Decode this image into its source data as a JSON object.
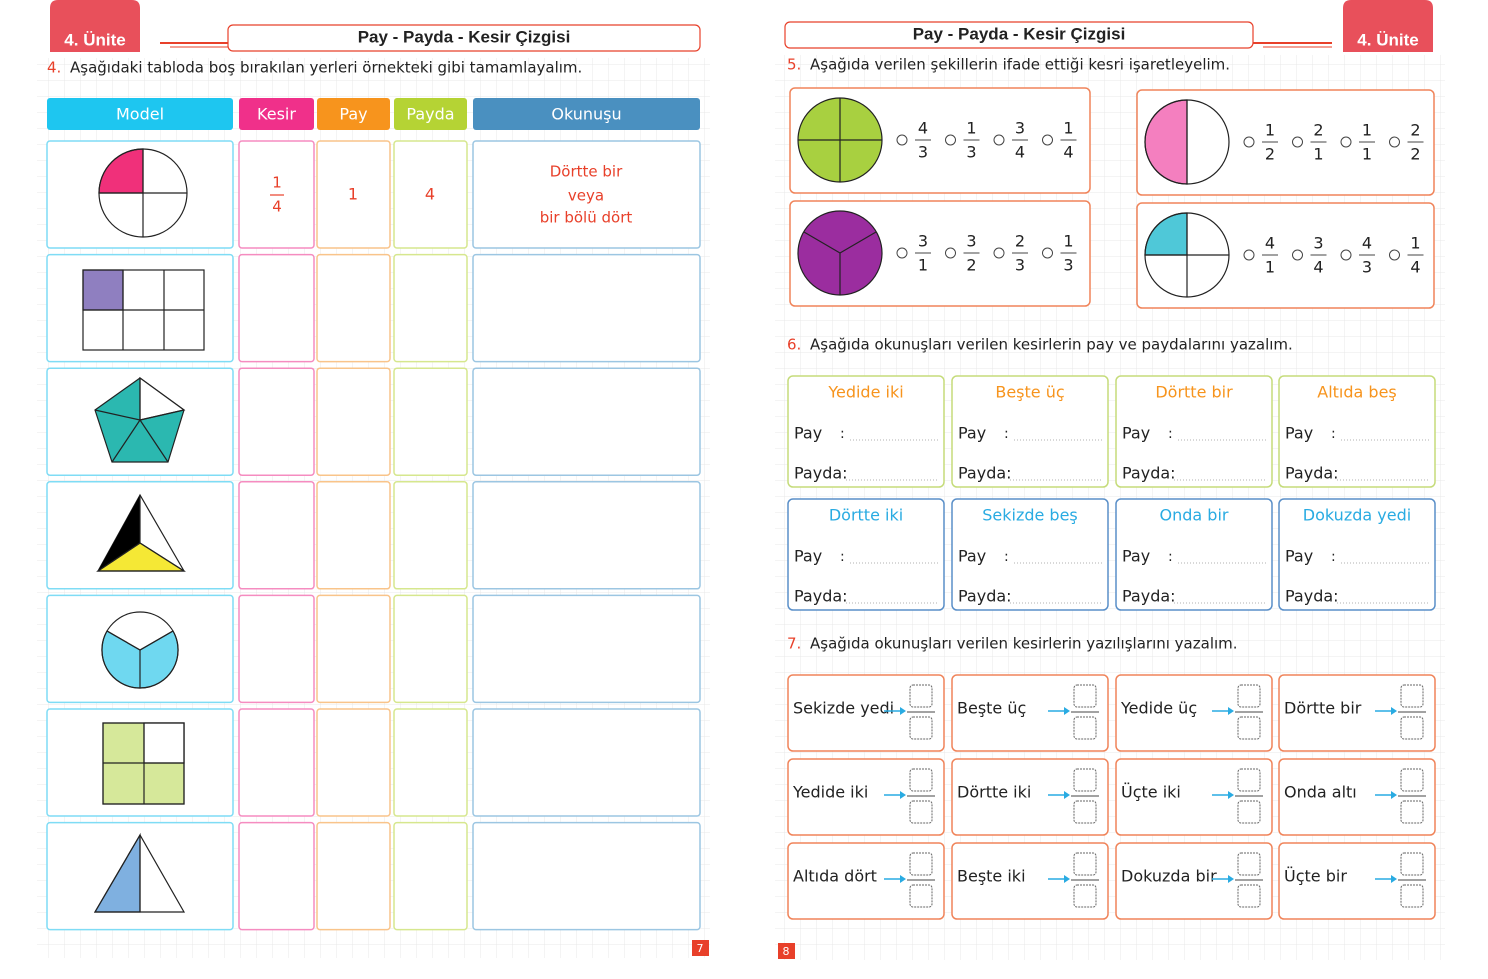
{
  "left_page": {
    "unit_tab": "4. Ünite",
    "header": "Pay - Payda - Kesir Çizgisi",
    "page_number": "7",
    "exercise": {
      "number": "4.",
      "instruction": "Aşağıdaki tabloda boş bırakılan yerleri örnekteki gibi tamamlayalım.",
      "columns": [
        "Model",
        "Kesir",
        "Pay",
        "Payda",
        "Okunuşu"
      ],
      "example": {
        "fraction": {
          "numerator": "1",
          "denominator": "4"
        },
        "pay": "1",
        "payda": "4",
        "reading": [
          "Dörtte bir",
          "veya",
          "bir bölü dört"
        ]
      }
    }
  },
  "right_page": {
    "unit_tab": "4. Ünite",
    "header": "Pay - Payda - Kesir Çizgisi",
    "page_number": "8",
    "exercise_5": {
      "number": "5.",
      "instruction": "Aşağıda verilen şekillerin ifade ettiği kesri işaretleyelim.",
      "items": [
        {
          "options": [
            {
              "numerator": "4",
              "denominator": "3"
            },
            {
              "numerator": "1",
              "denominator": "3"
            },
            {
              "numerator": "3",
              "denominator": "4"
            },
            {
              "numerator": "1",
              "denominator": "4"
            }
          ]
        },
        {
          "options": [
            {
              "numerator": "1",
              "denominator": "2"
            },
            {
              "numerator": "2",
              "denominator": "1"
            },
            {
              "numerator": "1",
              "denominator": "1"
            },
            {
              "numerator": "2",
              "denominator": "2"
            }
          ]
        },
        {
          "options": [
            {
              "numerator": "3",
              "denominator": "1"
            },
            {
              "numerator": "3",
              "denominator": "2"
            },
            {
              "numerator": "2",
              "denominator": "3"
            },
            {
              "numerator": "1",
              "denominator": "3"
            }
          ]
        },
        {
          "options": [
            {
              "numerator": "4",
              "denominator": "1"
            },
            {
              "numerator": "3",
              "denominator": "4"
            },
            {
              "numerator": "4",
              "denominator": "3"
            },
            {
              "numerator": "1",
              "denominator": "4"
            }
          ]
        }
      ]
    },
    "exercise_6": {
      "number": "6.",
      "instruction": "Aşağıda okunuşları verilen kesirlerin pay ve paydalarını yazalım.",
      "pay_label": "Pay",
      "separator": ":",
      "payda_label": "Payda:",
      "cards": [
        "Yedide iki",
        "Beşte üç",
        "Dörtte bir",
        "Altıda beş",
        "Dörtte iki",
        "Sekizde beş",
        "Onda bir",
        "Dokuzda yedi"
      ]
    },
    "exercise_7": {
      "number": "7.",
      "instruction": "Aşağıda okunuşları verilen kesirlerin yazılışlarını yazalım.",
      "cards": [
        "Sekizde yedi",
        "Beşte üç",
        "Yedide üç",
        "Dörtte bir",
        "Yedide iki",
        "Dörtte iki",
        "Üçte iki",
        "Onda altı",
        "Altıda dört",
        "Beşte iki",
        "Dokuzda bir",
        "Üçte bir"
      ]
    }
  }
}
